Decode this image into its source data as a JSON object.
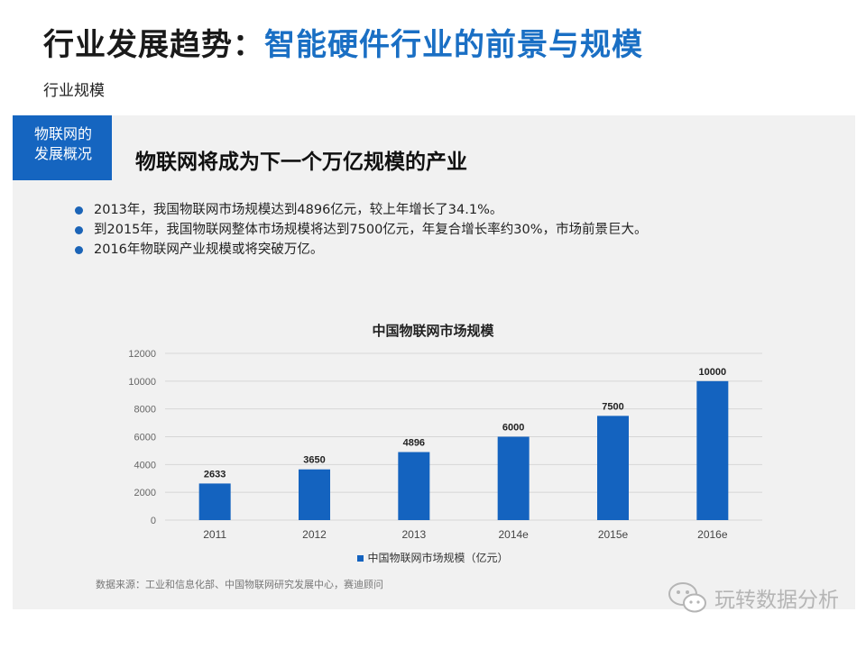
{
  "header": {
    "title_main": "行业发展趋势",
    "title_colon": "：",
    "title_accent": "智能硬件行业的前景与规模",
    "subtitle": "行业规模"
  },
  "panel": {
    "tag_line1": "物联网的",
    "tag_line2": "发展概况",
    "headline": "物联网将成为下一个万亿规模的产业",
    "bullets": [
      "2013年，我国物联网市场规模达到4896亿元，较上年增长了34.1%。",
      "到2015年，我国物联网整体市场规模将达到7500亿元，年复合增长率约30%，市场前景巨大。",
      "2016年物联网产业规模或将突破万亿。"
    ],
    "source": "数据来源：工业和信息化部、中国物联网研究发展中心，赛迪顾问"
  },
  "watermark": {
    "text": "玩转数据分析",
    "icon": "wechat-icon"
  },
  "colors": {
    "accent": "#1a6fc4",
    "tag_bg": "#1565c0",
    "bar": "#1463bf",
    "panel_bg": "#f1f1f1"
  },
  "chart_data": {
    "type": "bar",
    "title": "中国物联网市场规模",
    "categories": [
      "2011",
      "2012",
      "2013",
      "2014e",
      "2015e",
      "2016e"
    ],
    "series": [
      {
        "name": "中国物联网市场规模（亿元）",
        "values": [
          2633,
          3650,
          4896,
          6000,
          7500,
          10000
        ]
      }
    ],
    "data_labels": [
      "2633",
      "3650",
      "4896",
      "6000",
      "7500",
      "10000"
    ],
    "y_ticks": [
      0,
      2000,
      4000,
      6000,
      8000,
      10000,
      12000
    ],
    "ylim": [
      0,
      12000
    ],
    "xlabel": "",
    "ylabel": "",
    "grid": true,
    "legend_position": "bottom"
  }
}
